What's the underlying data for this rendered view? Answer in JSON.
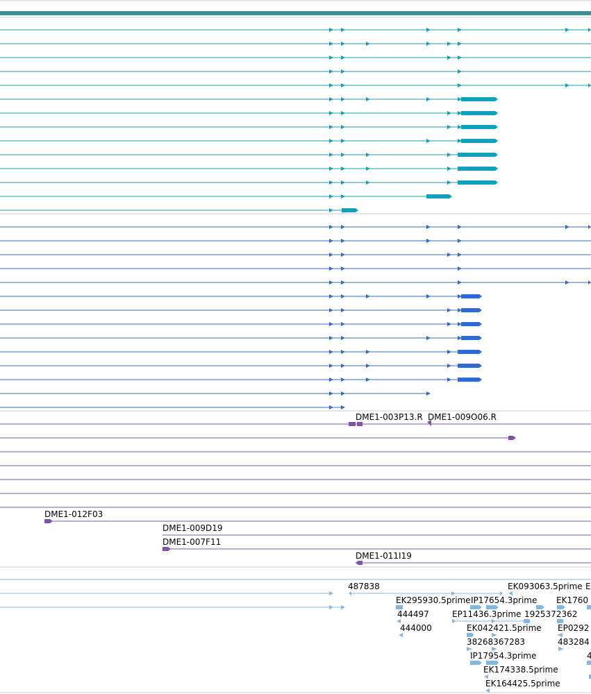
{
  "colors": {
    "frame": "#bbbbbb",
    "header_bar": "#3f8f8f",
    "track_teal": "#0fa0be",
    "track_blue": "#2e6ccd",
    "track_purple": "#7d54a8",
    "track_lightblue": "#84b7e0"
  },
  "tracks": {
    "teal_transcripts": {
      "rows": [
        {
          "arrows": [
            477,
            494,
            617,
            662,
            817,
            850
          ]
        },
        {
          "arrows": [
            477,
            494,
            530,
            617,
            647,
            662
          ]
        },
        {
          "arrows": [
            477,
            494,
            647,
            662
          ]
        },
        {
          "arrows": [
            477,
            494,
            662
          ]
        },
        {
          "arrows": [
            477,
            494,
            662,
            817,
            850
          ]
        },
        {
          "arrows": [
            477,
            494,
            530,
            617,
            662
          ]
        },
        {
          "arrows": [
            477,
            494,
            647,
            662
          ]
        },
        {
          "arrows": [
            477,
            494,
            617,
            662
          ]
        },
        {
          "arrows": [
            477,
            494,
            530,
            647
          ]
        },
        {
          "arrows": [
            477,
            494,
            530,
            647
          ]
        },
        {
          "arrows": [
            477,
            494,
            530,
            647
          ]
        },
        {
          "arrows": [
            477,
            494
          ]
        },
        {
          "arrows": [
            477
          ]
        }
      ]
    },
    "blue_transcripts": {
      "rows": [
        {
          "arrows": [
            477,
            494,
            617,
            662,
            817,
            850
          ]
        },
        {
          "arrows": [
            477,
            494,
            617,
            662
          ]
        },
        {
          "arrows": [
            477,
            494,
            647,
            662
          ]
        },
        {
          "arrows": [
            477,
            494,
            662
          ]
        },
        {
          "arrows": [
            477,
            494,
            662,
            817,
            850
          ]
        },
        {
          "arrows": [
            477,
            494,
            530,
            617,
            662
          ]
        },
        {
          "arrows": [
            477,
            494,
            647,
            662
          ]
        },
        {
          "arrows": [
            477,
            494,
            647,
            662
          ]
        },
        {
          "arrows": [
            477,
            494,
            617,
            662
          ]
        },
        {
          "arrows": [
            477,
            494,
            530,
            647
          ]
        },
        {
          "arrows": [
            477,
            494,
            530,
            647
          ]
        },
        {
          "arrows": [
            477,
            494,
            530,
            647
          ]
        },
        {
          "arrows": [
            477,
            494,
            617
          ]
        },
        {
          "arrows": [
            477,
            494
          ]
        }
      ]
    },
    "purple_clones": {
      "labels": [
        {
          "text": "DME1-003P13.R"
        },
        {
          "text": "DME1-009O06.R"
        },
        {
          "text": "DME1-012F03"
        },
        {
          "text": "DME1-009D19"
        },
        {
          "text": "DME1-007F11"
        },
        {
          "text": "DME1-011I19"
        }
      ]
    },
    "lightblue_ests": {
      "labels": [
        {
          "text": "487838"
        },
        {
          "text": "EK093063.5prime"
        },
        {
          "text": "E"
        },
        {
          "text": "EK295930.5prime"
        },
        {
          "text": "IP17654.3prime"
        },
        {
          "text": "EK1760"
        },
        {
          "text": "444497"
        },
        {
          "text": "EP11436.3prime"
        },
        {
          "text": "1925372362"
        },
        {
          "text": "444000"
        },
        {
          "text": "EK042421.5prime"
        },
        {
          "text": "EP0292"
        },
        {
          "text": "38268367283"
        },
        {
          "text": "483284"
        },
        {
          "text": "IP17954.3prime"
        },
        {
          "text": "4"
        },
        {
          "text": "EK174338.5prime"
        },
        {
          "text": "EK164425.5prime"
        }
      ]
    }
  }
}
